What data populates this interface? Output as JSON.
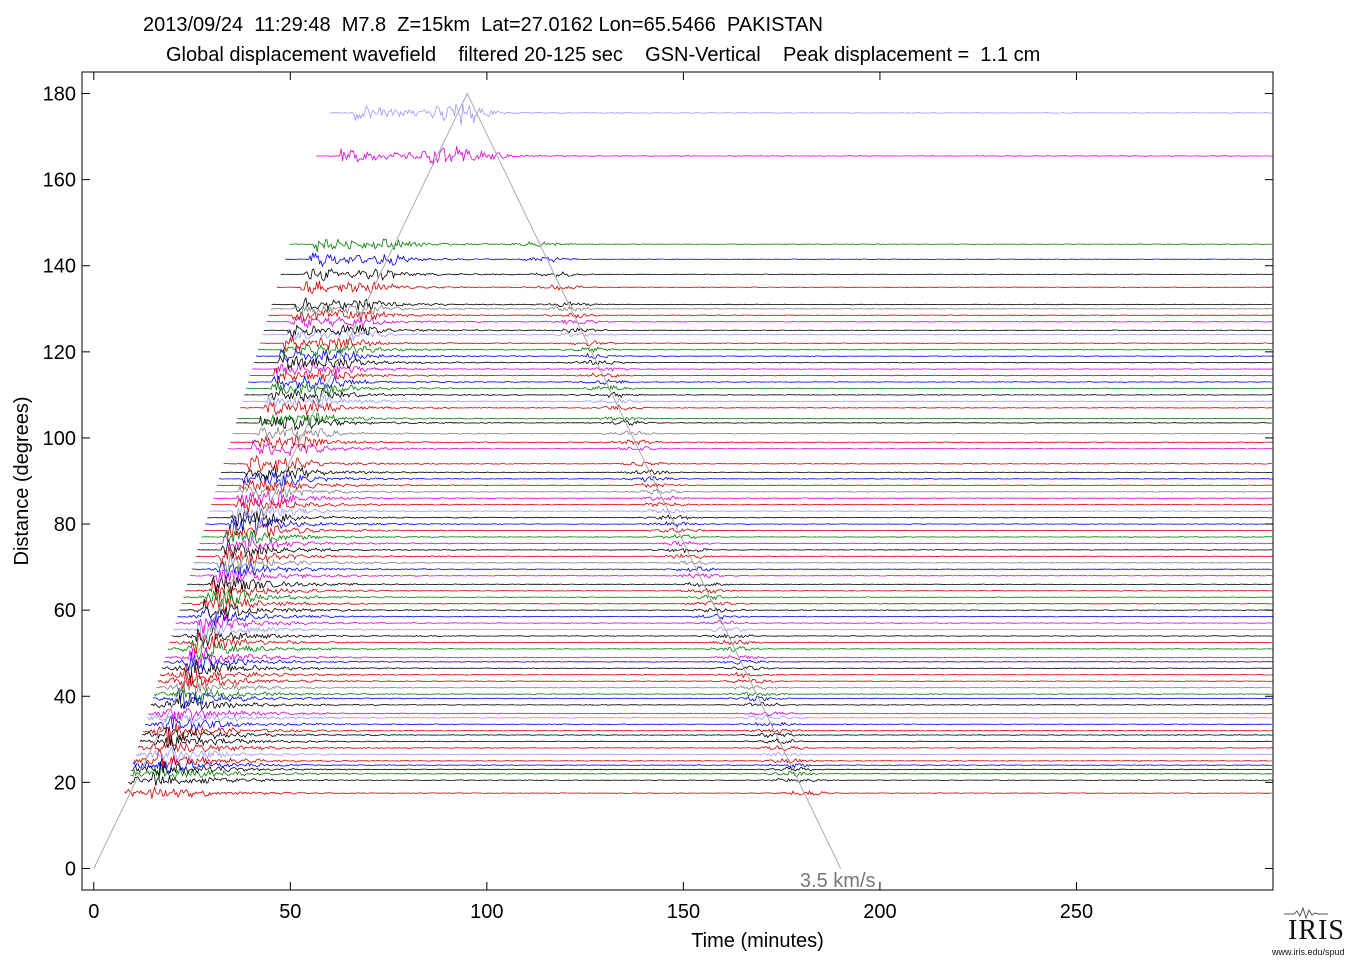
{
  "header": {
    "line1": "2013/09/24  11:29:48  M7.8  Z=15km  Lat=27.0162 Lon=65.5466  PAKISTAN",
    "line2": "Global displacement wavefield    filtered 20-125 sec    GSN-Vertical    Peak displacement =  1.1 cm"
  },
  "logo": {
    "word": "IRIS",
    "url": "www.iris.edu/spud",
    "icon": "seismogram-icon"
  },
  "chart_data": {
    "type": "line",
    "title": "2013/09/24  11:29:48  M7.8  Z=15km  Lat=27.0162 Lon=65.5466  PAKISTAN",
    "subtitle": "Global displacement wavefield    filtered 20-125 sec    GSN-Vertical    Peak displacement =  1.1 cm",
    "xlabel": "Time (minutes)",
    "ylabel": "Distance (degrees)",
    "xlim": [
      -3,
      300
    ],
    "ylim": [
      -5,
      185
    ],
    "xticks": [
      0,
      50,
      100,
      150,
      200,
      250
    ],
    "yticks": [
      0,
      20,
      40,
      60,
      80,
      100,
      120,
      140,
      160,
      180
    ],
    "grid": false,
    "annotation": {
      "text": "3.5 km/s",
      "x": 200,
      "y": -2
    },
    "reference_line": {
      "label": "3.5 km/s",
      "color": "#aaaaaa",
      "points": [
        [
          0,
          0
        ],
        [
          95,
          180
        ],
        [
          190,
          0
        ]
      ]
    },
    "trace_colors": [
      "#d00000",
      "#000000",
      "#0000ee",
      "#008000",
      "#dd00dd",
      "#808080",
      "#9999ff"
    ],
    "traces": [
      {
        "distance": 17.5,
        "start": 0,
        "color": "#d00000"
      },
      {
        "distance": 20.5,
        "start": 3,
        "color": "#000000"
      },
      {
        "distance": 22,
        "start": 3,
        "color": "#008000"
      },
      {
        "distance": 23,
        "start": 4,
        "color": "#000000"
      },
      {
        "distance": 24,
        "start": 4,
        "color": "#0000ee"
      },
      {
        "distance": 25,
        "start": 4,
        "color": "#d00000"
      },
      {
        "distance": 26.5,
        "start": 5,
        "color": "#9999ff"
      },
      {
        "distance": 28,
        "start": 5,
        "color": "#d00000"
      },
      {
        "distance": 29.5,
        "start": 6,
        "color": "#000000"
      },
      {
        "distance": 31,
        "start": 6,
        "color": "#000000"
      },
      {
        "distance": 32,
        "start": 6,
        "color": "#d00000"
      },
      {
        "distance": 33.5,
        "start": 6,
        "color": "#0000ee"
      },
      {
        "distance": 35,
        "start": 7,
        "color": "#9999ff"
      },
      {
        "distance": 36,
        "start": 7,
        "color": "#dd00dd"
      },
      {
        "distance": 38,
        "start": 7,
        "color": "#000000"
      },
      {
        "distance": 39.5,
        "start": 8,
        "color": "#0000ee"
      },
      {
        "distance": 40.5,
        "start": 8,
        "color": "#008000"
      },
      {
        "distance": 42,
        "start": 8,
        "color": "#808080"
      },
      {
        "distance": 43.5,
        "start": 8,
        "color": "#d00000"
      },
      {
        "distance": 45,
        "start": 9,
        "color": "#d00000"
      },
      {
        "distance": 46.5,
        "start": 9,
        "color": "#000000"
      },
      {
        "distance": 48,
        "start": 9,
        "color": "#0000ee"
      },
      {
        "distance": 49,
        "start": 9,
        "color": "#dd00dd"
      },
      {
        "distance": 51,
        "start": 10,
        "color": "#008000"
      },
      {
        "distance": 52.5,
        "start": 10,
        "color": "#d00000"
      },
      {
        "distance": 54,
        "start": 10,
        "color": "#000000"
      },
      {
        "distance": 55.5,
        "start": 11,
        "color": "#9999ff"
      },
      {
        "distance": 57,
        "start": 11,
        "color": "#dd00dd"
      },
      {
        "distance": 58.5,
        "start": 11,
        "color": "#0000ee"
      },
      {
        "distance": 60,
        "start": 11,
        "color": "#000000"
      },
      {
        "distance": 61.5,
        "start": 12,
        "color": "#d00000"
      },
      {
        "distance": 63,
        "start": 12,
        "color": "#008000"
      },
      {
        "distance": 64.5,
        "start": 12,
        "color": "#d00000"
      },
      {
        "distance": 66,
        "start": 12,
        "color": "#000000"
      },
      {
        "distance": 68,
        "start": 13,
        "color": "#dd00dd"
      },
      {
        "distance": 69.5,
        "start": 13,
        "color": "#0000ee"
      },
      {
        "distance": 71,
        "start": 13,
        "color": "#808080"
      },
      {
        "distance": 72.5,
        "start": 14,
        "color": "#d00000"
      },
      {
        "distance": 74,
        "start": 14,
        "color": "#000000"
      },
      {
        "distance": 75.5,
        "start": 14,
        "color": "#dd00dd"
      },
      {
        "distance": 77,
        "start": 14,
        "color": "#008000"
      },
      {
        "distance": 78.5,
        "start": 15,
        "color": "#d00000"
      },
      {
        "distance": 80,
        "start": 15,
        "color": "#0000ee"
      },
      {
        "distance": 81.5,
        "start": 15,
        "color": "#000000"
      },
      {
        "distance": 83,
        "start": 15,
        "color": "#9999ff"
      },
      {
        "distance": 84.5,
        "start": 16,
        "color": "#d00000"
      },
      {
        "distance": 86,
        "start": 16,
        "color": "#dd00dd"
      },
      {
        "distance": 87.5,
        "start": 16,
        "color": "#808080"
      },
      {
        "distance": 89,
        "start": 16,
        "color": "#d00000"
      },
      {
        "distance": 90.5,
        "start": 17,
        "color": "#0000ee"
      },
      {
        "distance": 92,
        "start": 17,
        "color": "#000000"
      },
      {
        "distance": 94,
        "start": 17,
        "color": "#d00000"
      },
      {
        "distance": 97.5,
        "start": 18,
        "color": "#dd00dd"
      },
      {
        "distance": 99,
        "start": 18,
        "color": "#d00000"
      },
      {
        "distance": 101,
        "start": 18,
        "color": "#808080"
      },
      {
        "distance": 103.5,
        "start": 19,
        "color": "#000000"
      },
      {
        "distance": 104.5,
        "start": 19,
        "color": "#008000"
      },
      {
        "distance": 107,
        "start": 19,
        "color": "#d00000"
      },
      {
        "distance": 108.5,
        "start": 20,
        "color": "#9999ff"
      },
      {
        "distance": 110,
        "start": 20,
        "color": "#000000"
      },
      {
        "distance": 111.5,
        "start": 20,
        "color": "#008000"
      },
      {
        "distance": 113,
        "start": 20,
        "color": "#0000ee"
      },
      {
        "distance": 114.5,
        "start": 21,
        "color": "#d00000"
      },
      {
        "distance": 116,
        "start": 21,
        "color": "#dd00dd"
      },
      {
        "distance": 117.5,
        "start": 21,
        "color": "#000000"
      },
      {
        "distance": 119,
        "start": 21,
        "color": "#0000ee"
      },
      {
        "distance": 120.5,
        "start": 22,
        "color": "#008000"
      },
      {
        "distance": 122,
        "start": 22,
        "color": "#d00000"
      },
      {
        "distance": 124,
        "start": 22,
        "color": "#9999ff"
      },
      {
        "distance": 125,
        "start": 22,
        "color": "#000000"
      },
      {
        "distance": 127,
        "start": 23,
        "color": "#dd00dd"
      },
      {
        "distance": 128.5,
        "start": 23,
        "color": "#d00000"
      },
      {
        "distance": 130,
        "start": 23,
        "color": "#808080"
      },
      {
        "distance": 131,
        "start": 23,
        "color": "#000000"
      },
      {
        "distance": 135,
        "start": 24,
        "color": "#d00000"
      },
      {
        "distance": 138,
        "start": 24,
        "color": "#000000"
      },
      {
        "distance": 141.5,
        "start": 24,
        "color": "#0000ee"
      },
      {
        "distance": 145,
        "start": 24,
        "color": "#008000"
      },
      {
        "distance": 165.5,
        "start": 25,
        "color": "#dd00dd"
      },
      {
        "distance": 175.5,
        "start": 25,
        "color": "#9999ff"
      }
    ]
  }
}
